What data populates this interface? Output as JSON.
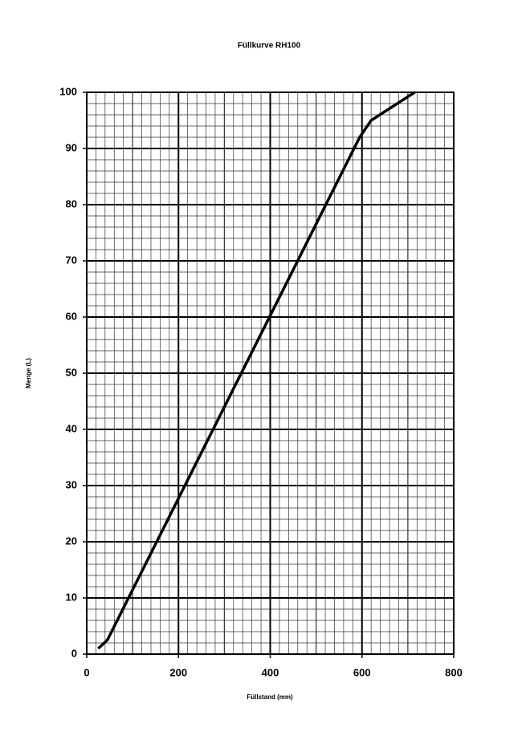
{
  "chart_data": {
    "type": "line",
    "title": "Füllkurve RH100",
    "x_label": "Füllstand (mm)",
    "y_label": "Menge (L)",
    "x": [
      25,
      45,
      595,
      620,
      715
    ],
    "series": [
      {
        "name": "Menge",
        "color": "#000000",
        "values": [
          1,
          2.5,
          92,
          95,
          100
        ]
      }
    ],
    "xlim": [
      0,
      800
    ],
    "xticks": [
      0,
      200,
      400,
      600,
      800
    ],
    "ylim": [
      0,
      100
    ],
    "yticks": [
      0,
      10,
      20,
      30,
      40,
      50,
      60,
      70,
      80,
      90,
      100
    ],
    "grid": true,
    "legend": false
  }
}
